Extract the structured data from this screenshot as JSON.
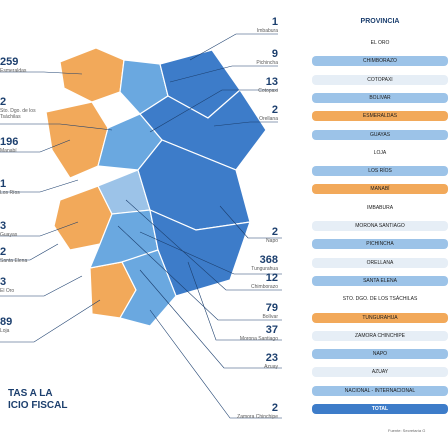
{
  "chart_data": {
    "type": "table",
    "table_header": "PROVINCIA",
    "provinces": [
      {
        "name": "EL ORO",
        "style": "none"
      },
      {
        "name": "CHIMBORAZO",
        "style": "blue"
      },
      {
        "name": "COTOPAXI",
        "style": "lightgray"
      },
      {
        "name": "BOLIVAR",
        "style": "blue"
      },
      {
        "name": "ESMERALDAS",
        "style": "orange"
      },
      {
        "name": "GUAYAS",
        "style": "blue"
      },
      {
        "name": "LOJA",
        "style": "none"
      },
      {
        "name": "LOS RÍOS",
        "style": "blue"
      },
      {
        "name": "MANABÍ",
        "style": "orange"
      },
      {
        "name": "IMBABURA",
        "style": "none"
      },
      {
        "name": "MORONA SANTIAGO",
        "style": "lightgray"
      },
      {
        "name": "PICHINCHA",
        "style": "blue"
      },
      {
        "name": "ORELLANA",
        "style": "lightgray"
      },
      {
        "name": "SANTA ELENA",
        "style": "blue"
      },
      {
        "name": "STO. DGO. DE LOS TSÁCHILAS",
        "style": "none"
      },
      {
        "name": "TUNGURAHUA",
        "style": "orange"
      },
      {
        "name": "ZAMORA CHINCHIPE",
        "style": "lightgray"
      },
      {
        "name": "NAPO",
        "style": "blue"
      },
      {
        "name": "AZUAY",
        "style": "lightgray"
      },
      {
        "name": "NACIONAL - INTERNACIONAL",
        "style": "blue"
      },
      {
        "name": "TOTAL",
        "style": "dark"
      }
    ],
    "right_callouts": [
      {
        "value": "1",
        "name": "Imbabura"
      },
      {
        "value": "9",
        "name": "Pichincha"
      },
      {
        "value": "13",
        "name": "Cotopaxi"
      },
      {
        "value": "2",
        "name": "Orellana"
      },
      {
        "value": "2",
        "name": "Napo"
      },
      {
        "value": "368",
        "name": "Tungurahua"
      },
      {
        "value": "12",
        "name": "Chimborazo"
      },
      {
        "value": "79",
        "name": "Bolívar"
      },
      {
        "value": "37",
        "name": "Morona Santiago"
      },
      {
        "value": "23",
        "name": "Azuay"
      },
      {
        "value": "2",
        "name": "Zamora Chinchipe"
      }
    ],
    "left_callouts": [
      {
        "value": "259",
        "name": "Esmeraldas"
      },
      {
        "value": "2",
        "name": "Sto. Dgo. de los Tsáchilas"
      },
      {
        "value": "196",
        "name": "Manabí"
      },
      {
        "value": "1",
        "name": "Los Ríos"
      },
      {
        "value": "3",
        "name": "Guayas"
      },
      {
        "value": "2",
        "name": "Santa Elena"
      },
      {
        "value": "3",
        "name": "El Oro"
      },
      {
        "value": "89",
        "name": "Loja"
      }
    ]
  },
  "title_lines": [
    "TAS A LA",
    "ICIO FISCAL"
  ],
  "source": "Fuente: Secretaría G",
  "colors": {
    "dark_blue": "#3d7cc9",
    "mid_blue": "#6aa8e0",
    "light_blue": "#9cc3e8",
    "orange": "#f2a95a",
    "text": "#1c3f6e"
  }
}
